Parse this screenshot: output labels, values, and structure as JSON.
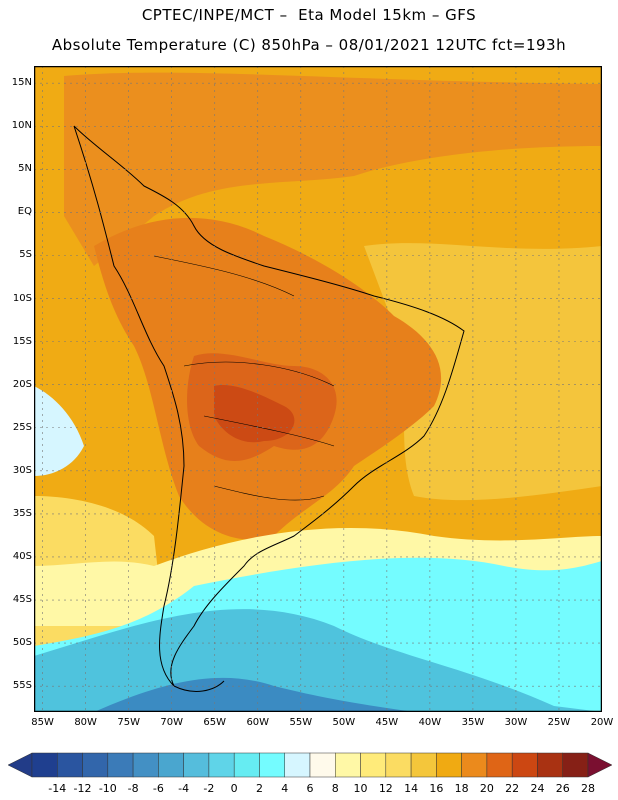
{
  "header": {
    "title_line1": "CPTEC/INPE/MCT –  Eta Model 15km – GFS",
    "title_line2": "Absolute Temperature (C) 850hPa – 08/01/2021 12UTC fct=193h"
  },
  "map": {
    "lat_labels": [
      "15N",
      "10N",
      "5N",
      "EQ",
      "5S",
      "10S",
      "15S",
      "20S",
      "25S",
      "30S",
      "35S",
      "40S",
      "45S",
      "50S",
      "55S"
    ],
    "lon_labels": [
      "85W",
      "80W",
      "75W",
      "70W",
      "65W",
      "60W",
      "55W",
      "50W",
      "45W",
      "40W",
      "35W",
      "30W",
      "25W",
      "20W"
    ],
    "lat_range": [
      17,
      -58
    ],
    "lon_range": [
      -86,
      -20
    ]
  },
  "colorbar": {
    "labels": [
      "-14",
      "-12",
      "-10",
      "-8",
      "-6",
      "-4",
      "-2",
      "0",
      "2",
      "4",
      "6",
      "8",
      "10",
      "12",
      "14",
      "16",
      "18",
      "20",
      "22",
      "24",
      "26",
      "28"
    ],
    "colors": [
      "#1f3f8f",
      "#2a55a0",
      "#3266ab",
      "#3b7bb8",
      "#4390c4",
      "#4aa6cf",
      "#55bddc",
      "#5fd4e8",
      "#66ecf2",
      "#74fcff",
      "#d6f6ff",
      "#fffaeb",
      "#fff8a6",
      "#ffeb7a",
      "#fbdc62",
      "#f4c63b",
      "#f0aa12",
      "#eb8a1c",
      "#df6516",
      "#cc4712",
      "#a93212",
      "#862016"
    ],
    "under_color": "#223c88",
    "over_color": "#7a0f30"
  }
}
